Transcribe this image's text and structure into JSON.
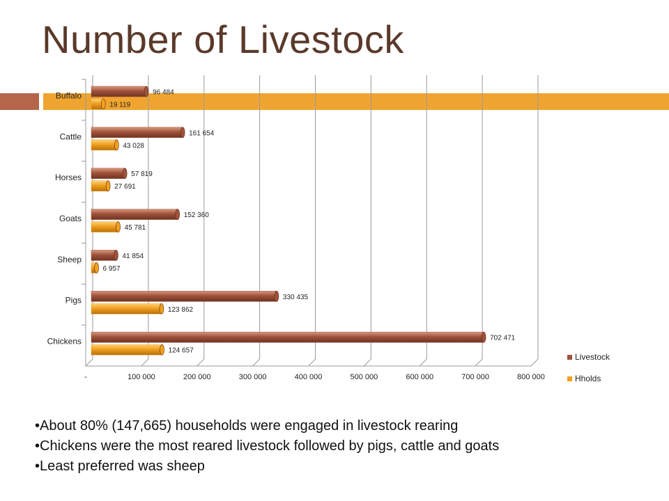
{
  "slide": {
    "title": "Number of Livestock",
    "notes": [
      "About 80%  (147,665) households were engaged in livestock rearing",
      "Chickens were the most reared livestock followed by pigs, cattle and goats",
      "Least preferred was sheep"
    ],
    "colors": {
      "accent_red": "#b5654a",
      "accent_orange": "#f0a430"
    }
  },
  "chart_data": {
    "type": "bar",
    "orientation": "horizontal",
    "style": "3d-cylinder",
    "title": "",
    "xlabel": "",
    "ylabel": "",
    "categories": [
      "Buffalo",
      "Cattle",
      "Horses",
      "Goats",
      "Sheep",
      "Pigs",
      "Chickens"
    ],
    "series": [
      {
        "name": "Livestock",
        "color": "#a0523a",
        "values": [
          96484,
          161654,
          57819,
          152360,
          41854,
          330435,
          702471
        ],
        "labels": [
          "96 484",
          "161 654",
          "57 819",
          "152 360",
          "41 854",
          "330 435",
          "702 471"
        ]
      },
      {
        "name": "Hholds",
        "color": "#f0a020",
        "values": [
          19119,
          43028,
          27691,
          45781,
          6957,
          123862,
          124657
        ],
        "labels": [
          "19 119",
          "43 028",
          "27 691",
          "45 781",
          "6 957",
          "123 862",
          "124 657"
        ]
      }
    ],
    "xlim": [
      0,
      800000
    ],
    "xticks": [
      0,
      100000,
      200000,
      300000,
      400000,
      500000,
      600000,
      700000,
      800000
    ],
    "xtick_labels": [
      "-",
      "100 000",
      "200 000",
      "300 000",
      "400 000",
      "500 000",
      "600 000",
      "700 000",
      "800 000"
    ],
    "grid": true,
    "legend": "right"
  }
}
